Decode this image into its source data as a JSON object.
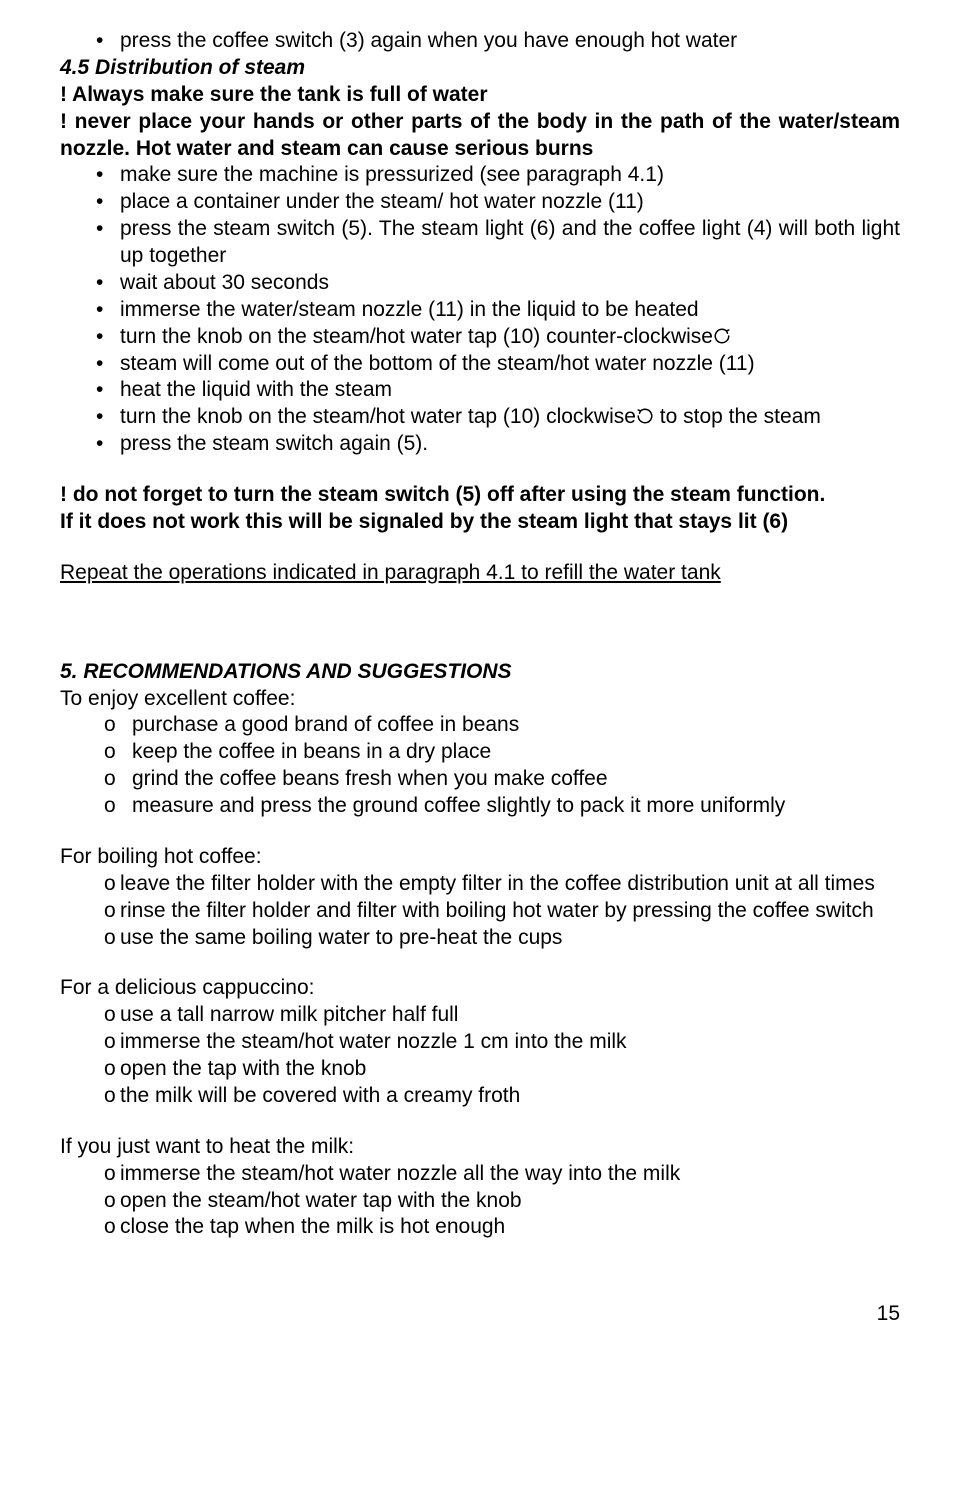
{
  "colors": {
    "text": "#000000",
    "background": "#ffffff"
  },
  "typography": {
    "font_family": "Arial, Helvetica, sans-serif",
    "body_fontsize_pt": 16,
    "line_height": 1.28
  },
  "icons": {
    "ccw_arrow": "↺",
    "cw_arrow": "↻"
  },
  "section_4_4_last_bullet": "press the coffee switch (3) again when you have enough hot water",
  "section_4_5": {
    "heading": "4.5 Distribution of steam",
    "warn1": "! Always make sure the tank is full of water",
    "warn2": "! never place your hands or other parts of the body in the path of the water/steam nozzle. Hot water and steam can cause serious burns",
    "bullets": [
      "make sure the machine is pressurized (see paragraph 4.1)",
      "place a container under the steam/ hot water nozzle (11)",
      "press the steam switch (5). The steam light (6) and the coffee light (4) will both light up together",
      "wait about 30 seconds",
      "immerse the water/steam nozzle (11) in the liquid to be heated",
      "turn the knob on the steam/hot water tap (10) counter-clockwise",
      "steam will come out of the bottom of the steam/hot water nozzle (11)",
      "heat the liquid with the steam",
      "turn the knob on the steam/hot water tap (10) clockwise     to stop the steam",
      "press the steam switch again (5)."
    ],
    "ccw_bullet_index": 5,
    "cw_bullet_index": 8,
    "warn3_line1": "! do not forget to turn the steam switch (5) off after using the steam function.",
    "warn3_line2": "If it does not work this will be signaled by the steam light that stays lit (6)",
    "repeat_note": "Repeat the operations indicated in paragraph 4.1 to refill the water tank"
  },
  "section_5": {
    "heading": "5. RECOMMENDATIONS AND SUGGESTIONS",
    "intro1": "To enjoy excellent coffee:",
    "list1": [
      "purchase a good brand of coffee in beans",
      "keep the coffee in beans in a dry place",
      "grind the coffee beans fresh when you make coffee",
      "measure and press the ground coffee slightly to pack it more uniformly"
    ],
    "intro2": "For boiling hot coffee:",
    "list2": [
      "leave the filter holder with the empty filter in the coffee distribution unit at all times",
      "rinse the filter holder and filter with boiling hot water by pressing the coffee switch",
      "use the same boiling water to pre-heat the cups"
    ],
    "intro3": "For a delicious cappuccino:",
    "list3": [
      "use a tall narrow milk pitcher half full",
      "immerse the steam/hot water nozzle 1 cm into the milk",
      "open the tap with the knob",
      "the milk will be covered with a creamy froth"
    ],
    "intro4": "If you just want to heat the milk:",
    "list4": [
      "immerse the steam/hot water nozzle all the way into the milk",
      "open the steam/hot water tap with the knob",
      "close the tap when the milk is hot enough"
    ]
  },
  "page_number": "15"
}
